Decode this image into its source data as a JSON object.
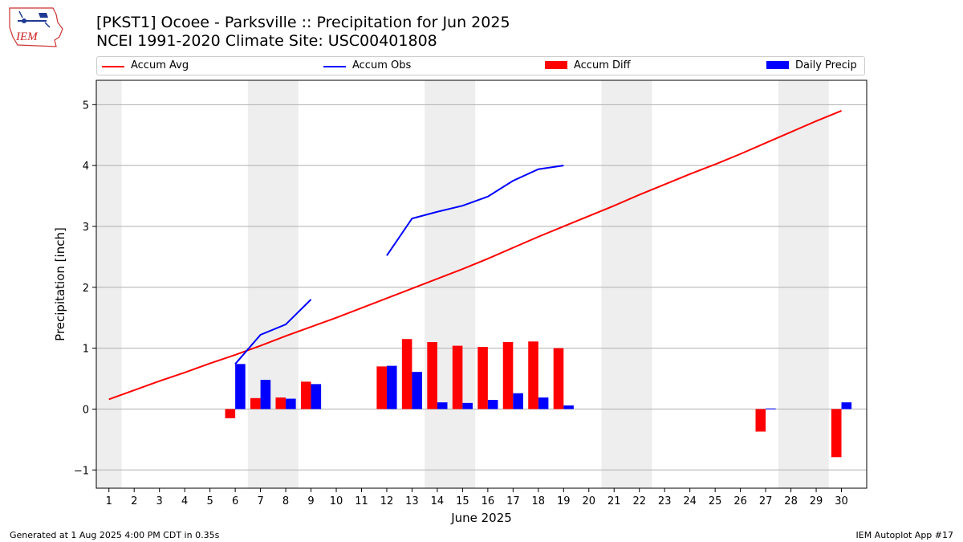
{
  "logo": {
    "icon": "iem-logo-icon",
    "text": "IEM"
  },
  "header": {
    "title_line1": "[PKST1] Ocoee - Parksville :: Precipitation for Jun 2025",
    "title_line2": "NCEI 1991-2020 Climate Site: USC00401808"
  },
  "legend": {
    "items": [
      {
        "label": "Accum Avg",
        "kind": "line",
        "color": "#ff0000"
      },
      {
        "label": "Accum Obs",
        "kind": "line",
        "color": "#0000ff"
      },
      {
        "label": "Accum Diff",
        "kind": "bar",
        "color": "#ff0000"
      },
      {
        "label": "Daily Precip",
        "kind": "bar",
        "color": "#0000ff"
      }
    ]
  },
  "footer": {
    "left": "Generated at 1 Aug 2025 4:00 PM CDT in 0.35s",
    "right": "IEM Autoplot App #17"
  },
  "chart_data": {
    "type": "bar",
    "xlabel": "June 2025",
    "ylabel": "Precipitation [inch]",
    "xlim": [
      0.5,
      31
    ],
    "ylim": [
      -1.3,
      5.4
    ],
    "yticks": [
      -1,
      0,
      1,
      2,
      3,
      4,
      5
    ],
    "ytick_labels": [
      "−1",
      "0",
      "1",
      "2",
      "3",
      "4",
      "5"
    ],
    "x": [
      1,
      2,
      3,
      4,
      5,
      6,
      7,
      8,
      9,
      10,
      11,
      12,
      13,
      14,
      15,
      16,
      17,
      18,
      19,
      20,
      21,
      22,
      23,
      24,
      25,
      26,
      27,
      28,
      29,
      30
    ],
    "grid": "horizontal",
    "legend_position": "top",
    "weekend_shading": [
      [
        0.5,
        1.5
      ],
      [
        6.5,
        8.5
      ],
      [
        13.5,
        15.5
      ],
      [
        20.5,
        22.5
      ],
      [
        27.5,
        29.5
      ]
    ],
    "weekend_color": "#eeeeee",
    "series": [
      {
        "name": "Accum Avg",
        "kind": "line",
        "color": "#ff0000",
        "values": [
          0.16,
          0.31,
          0.46,
          0.6,
          0.75,
          0.89,
          1.04,
          1.2,
          1.35,
          1.5,
          1.66,
          1.82,
          1.98,
          2.14,
          2.3,
          2.47,
          2.65,
          2.83,
          3.0,
          3.17,
          3.34,
          3.52,
          3.69,
          3.86,
          4.02,
          4.19,
          4.37,
          4.55,
          4.73,
          4.9
        ]
      },
      {
        "name": "Accum Obs",
        "kind": "line",
        "color": "#0000ff",
        "values": [
          null,
          null,
          null,
          null,
          null,
          0.74,
          1.22,
          1.39,
          1.8,
          null,
          null,
          2.52,
          3.13,
          3.24,
          3.34,
          3.49,
          3.75,
          3.94,
          4.0,
          null,
          null,
          null,
          null,
          null,
          null,
          null,
          null,
          null,
          null,
          null
        ]
      },
      {
        "name": "Accum Diff",
        "kind": "bar",
        "color": "#ff0000",
        "values": [
          null,
          null,
          null,
          null,
          null,
          -0.15,
          0.18,
          0.19,
          0.45,
          null,
          null,
          0.7,
          1.15,
          1.1,
          1.04,
          1.02,
          1.1,
          1.11,
          1.0,
          null,
          null,
          null,
          null,
          null,
          null,
          null,
          -0.37,
          null,
          null,
          -0.79
        ]
      },
      {
        "name": "Daily Precip",
        "kind": "bar",
        "color": "#0000ff",
        "values": [
          null,
          null,
          null,
          null,
          null,
          0.74,
          0.48,
          0.17,
          0.41,
          null,
          null,
          0.71,
          0.61,
          0.11,
          0.1,
          0.15,
          0.26,
          0.19,
          0.06,
          null,
          null,
          null,
          null,
          null,
          null,
          null,
          0.01,
          null,
          null,
          0.11
        ]
      }
    ]
  }
}
